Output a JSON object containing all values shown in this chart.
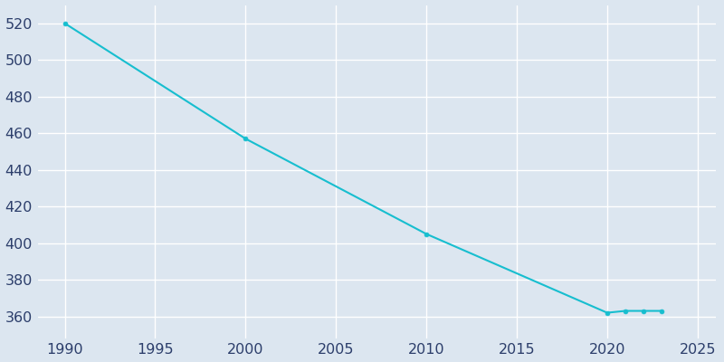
{
  "years": [
    1990,
    2000,
    2010,
    2020,
    2021,
    2022,
    2023
  ],
  "population": [
    520,
    457,
    405,
    362,
    363,
    363,
    363
  ],
  "line_color": "#17BECF",
  "marker": "o",
  "marker_size": 3.5,
  "line_width": 1.5,
  "background_color": "#DCE6F0",
  "plot_background": "#DCE6F0",
  "grid_color": "#C8D4E3",
  "xlim": [
    1988.5,
    2026
  ],
  "ylim": [
    348,
    530
  ],
  "xticks": [
    1990,
    1995,
    2000,
    2005,
    2010,
    2015,
    2020,
    2025
  ],
  "yticks": [
    360,
    380,
    400,
    420,
    440,
    460,
    480,
    500,
    520
  ],
  "tick_color": "#2c3e6b",
  "tick_fontsize": 11.5
}
